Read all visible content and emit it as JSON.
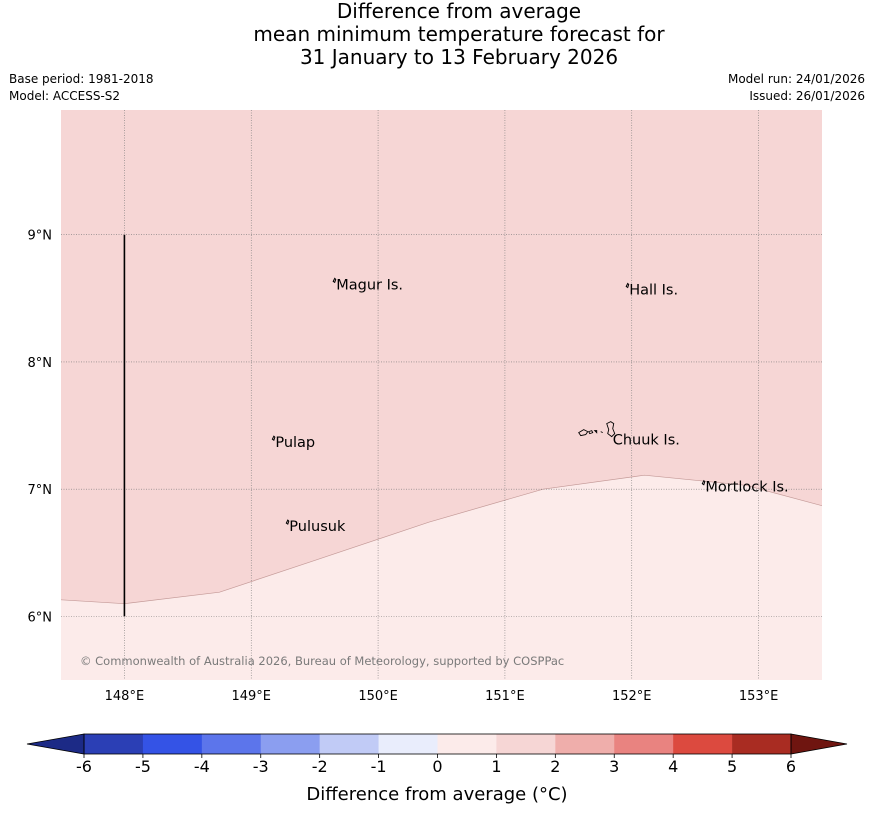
{
  "title": {
    "line1": "Difference from average",
    "line2": "mean minimum temperature forecast for",
    "line3": "31 January to 13 February 2026"
  },
  "meta": {
    "base_period": "Base period: 1981-2018",
    "model": "Model: ACCESS-S2",
    "model_run": "Model run: 24/01/2026",
    "issued": "Issued: 26/01/2026"
  },
  "map": {
    "lon_range": [
      147.5,
      153.5
    ],
    "lat_range": [
      5.5,
      9.98
    ],
    "fill_colors": {
      "band_1_2": "#f6d6d5",
      "band_0_1": "#fcebea"
    },
    "contour_1C": [
      [
        147.5,
        6.13
      ],
      [
        148.0,
        6.1
      ],
      [
        148.75,
        6.19
      ],
      [
        149.5,
        6.44
      ],
      [
        150.4,
        6.74
      ],
      [
        151.3,
        7.0
      ],
      [
        152.1,
        7.11
      ],
      [
        152.9,
        7.03
      ],
      [
        153.5,
        6.87
      ]
    ],
    "lat_ticks": [
      {
        "value": 6,
        "label": "6°N"
      },
      {
        "value": 7,
        "label": "7°N"
      },
      {
        "value": 8,
        "label": "8°N"
      },
      {
        "value": 9,
        "label": "9°N"
      }
    ],
    "lon_ticks": [
      {
        "value": 148,
        "label": "148°E"
      },
      {
        "value": 149,
        "label": "149°E"
      },
      {
        "value": 150,
        "label": "150°E"
      },
      {
        "value": 151,
        "label": "151°E"
      },
      {
        "value": 152,
        "label": "152°E"
      },
      {
        "value": 153,
        "label": "153°E"
      }
    ],
    "meridian_line": {
      "lon": 148.0,
      "lat_from": 6.0,
      "lat_to": 9.0
    },
    "places": [
      {
        "name": "Magur Is.",
        "lon": 149.67,
        "lat": 8.57
      },
      {
        "name": "Hall Is.",
        "lon": 151.98,
        "lat": 8.53
      },
      {
        "name": "Pulap",
        "lon": 149.19,
        "lat": 7.33
      },
      {
        "name": "Chuuk Is.",
        "lon": 151.85,
        "lat": 7.35
      },
      {
        "name": "Mortlock Is.",
        "lon": 152.58,
        "lat": 6.98
      },
      {
        "name": "Pulusuk",
        "lon": 149.3,
        "lat": 6.67
      }
    ],
    "copyright": "© Commonwealth of Australia 2026, Bureau of Meteorology, supported by COSPPac"
  },
  "colorbar": {
    "bounds": [
      -6,
      -5,
      -4,
      -3,
      -2,
      -1,
      0,
      1,
      2,
      3,
      4,
      5,
      6
    ],
    "tick_labels": [
      "-6",
      "-5",
      "-4",
      "-3",
      "-2",
      "-1",
      "0",
      "1",
      "2",
      "3",
      "4",
      "5",
      "6"
    ],
    "colors": [
      "#2b3fb5",
      "#3453e6",
      "#5c75eb",
      "#8b9ef0",
      "#c1cbf6",
      "#e9edfc",
      "#fcebea",
      "#f6d6d5",
      "#efaeab",
      "#e98380",
      "#dc4a3f",
      "#a92c22"
    ],
    "under_color": "#1c2a86",
    "over_color": "#6f1510",
    "label": "Difference from average (°C)"
  }
}
